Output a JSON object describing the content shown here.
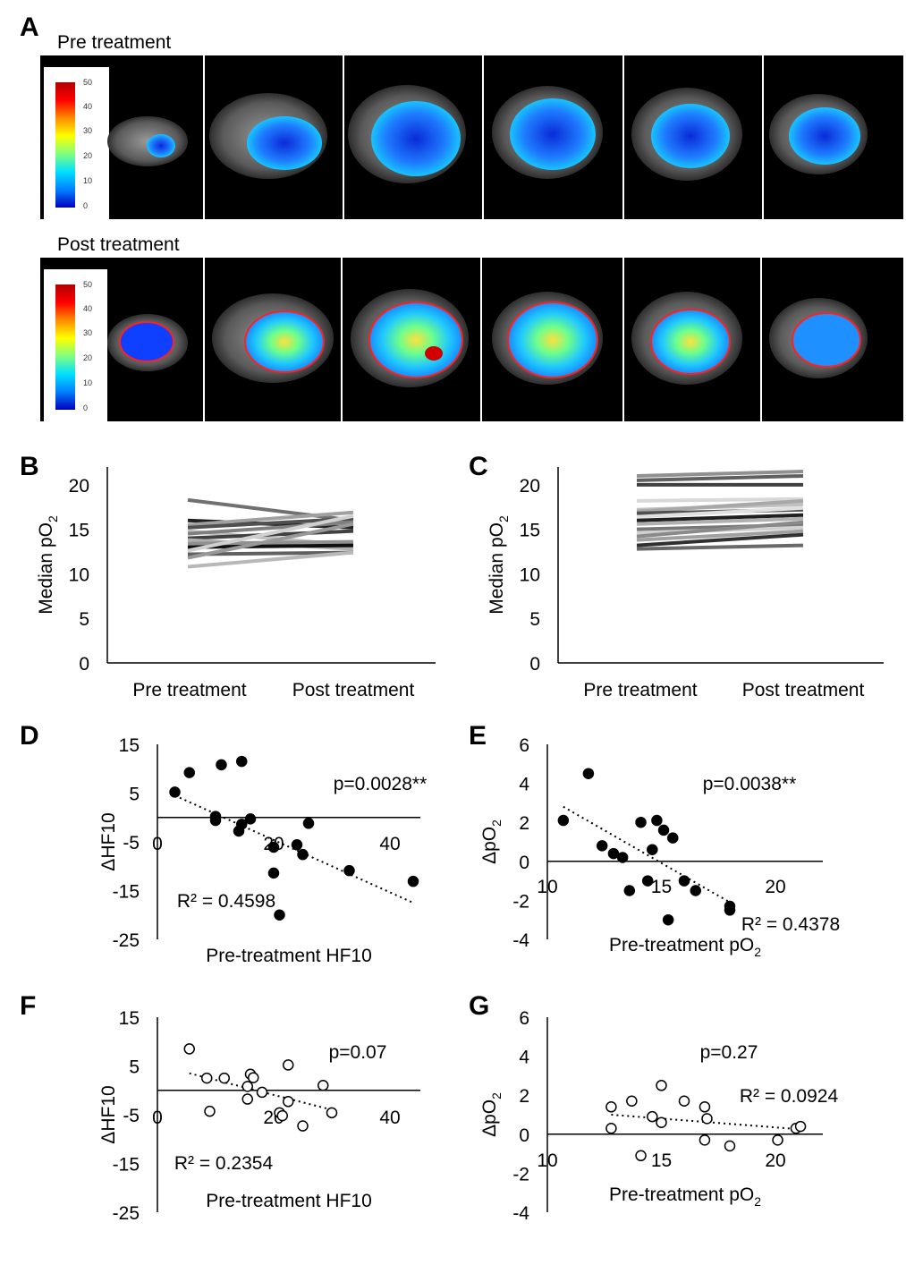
{
  "panels": {
    "A": "A",
    "B": "B",
    "C": "C",
    "D": "D",
    "E": "E",
    "F": "F",
    "G": "G"
  },
  "panel_a": {
    "row_titles": [
      "Pre treatment",
      "Post treatment"
    ],
    "colorbar_ticks": [
      "50",
      "40",
      "30",
      "20",
      "10",
      "0"
    ],
    "colorbar_colors": [
      "#b00000",
      "#ff0000",
      "#ff8c00",
      "#ffff00",
      "#00e0ff",
      "#0000c0"
    ]
  },
  "chart_data": [
    {
      "panel": "B",
      "type": "line",
      "categories": [
        "Pre treatment",
        "Post treatment"
      ],
      "ylabel": "Median pO2",
      "ylim": [
        0,
        22
      ],
      "yticks": [
        "0",
        "5",
        "10",
        "15",
        "20"
      ],
      "series": [
        {
          "values": [
            18.3,
            16.0
          ],
          "color": "#707070"
        },
        {
          "values": [
            16.0,
            15.2
          ],
          "color": "#202020"
        },
        {
          "values": [
            15.5,
            16.9
          ],
          "color": "#a0a0a0"
        },
        {
          "values": [
            15.2,
            16.2
          ],
          "color": "#505050"
        },
        {
          "values": [
            14.8,
            13.2
          ],
          "color": "#c0c0c0"
        },
        {
          "values": [
            14.5,
            15.8
          ],
          "color": "#808080"
        },
        {
          "values": [
            14.0,
            14.8
          ],
          "color": "#404040"
        },
        {
          "values": [
            13.8,
            12.8
          ],
          "color": "#b0b0b0"
        },
        {
          "values": [
            13.4,
            13.6
          ],
          "color": "#909090"
        },
        {
          "values": [
            13.0,
            13.2
          ],
          "color": "#101010"
        },
        {
          "values": [
            12.6,
            16.5
          ],
          "color": "#d0d0d0"
        },
        {
          "values": [
            12.2,
            12.4
          ],
          "color": "#606060"
        },
        {
          "values": [
            11.8,
            15.6
          ],
          "color": "#989898"
        },
        {
          "values": [
            10.8,
            12.4
          ],
          "color": "#b8b8b8"
        }
      ]
    },
    {
      "panel": "C",
      "type": "line",
      "categories": [
        "Pre treatment",
        "Post treatment"
      ],
      "ylabel": "Median pO2",
      "ylim": [
        0,
        22
      ],
      "yticks": [
        "0",
        "5",
        "10",
        "15",
        "20"
      ],
      "series": [
        {
          "values": [
            21.0,
            21.5
          ],
          "color": "#909090"
        },
        {
          "values": [
            20.5,
            21.0
          ],
          "color": "#606060"
        },
        {
          "values": [
            20.0,
            20.0
          ],
          "color": "#404040"
        },
        {
          "values": [
            18.2,
            18.4
          ],
          "color": "#d8d8d8"
        },
        {
          "values": [
            17.2,
            17.8
          ],
          "color": "#c0c0c0"
        },
        {
          "values": [
            17.0,
            18.2
          ],
          "color": "#a8a8a8"
        },
        {
          "values": [
            16.8,
            17.2
          ],
          "color": "#505050"
        },
        {
          "values": [
            16.4,
            17.4
          ],
          "color": "#e0e0e0"
        },
        {
          "values": [
            16.0,
            16.6
          ],
          "color": "#202020"
        },
        {
          "values": [
            15.6,
            16.2
          ],
          "color": "#b0b0b0"
        },
        {
          "values": [
            15.0,
            15.5
          ],
          "color": "#787878"
        },
        {
          "values": [
            14.6,
            15.2
          ],
          "color": "#d0d0d0"
        },
        {
          "values": [
            14.2,
            15.8
          ],
          "color": "#8a8a8a"
        },
        {
          "values": [
            13.8,
            14.8
          ],
          "color": "#a0a0a0"
        },
        {
          "values": [
            13.2,
            14.4
          ],
          "color": "#303030"
        },
        {
          "values": [
            12.8,
            13.2
          ],
          "color": "#686868"
        }
      ]
    },
    {
      "panel": "D",
      "type": "scatter",
      "xlabel": "Pre-treatment HF10",
      "ylabel": "ΔHF10",
      "xlim": [
        0,
        45
      ],
      "ylim": [
        -25,
        15
      ],
      "xticks": [
        "0",
        "20",
        "40"
      ],
      "yticks": [
        "15",
        "5",
        "-5",
        "-15",
        "-25"
      ],
      "marker": "filled",
      "points": [
        [
          3,
          5.2
        ],
        [
          5.5,
          9.2
        ],
        [
          11,
          10.8
        ],
        [
          14.5,
          11.5
        ],
        [
          10,
          0.2
        ],
        [
          10,
          -0.6
        ],
        [
          14,
          -2.8
        ],
        [
          14.5,
          -1.4
        ],
        [
          16,
          -0.3
        ],
        [
          20,
          -6.1
        ],
        [
          20,
          -11.4
        ],
        [
          21,
          -20
        ],
        [
          24,
          -5.6
        ],
        [
          25,
          -7.6
        ],
        [
          26,
          -1.2
        ],
        [
          33,
          -10.9
        ],
        [
          44,
          -13.1
        ]
      ],
      "trendline": [
        [
          3,
          4.5
        ],
        [
          44,
          -17.5
        ]
      ],
      "annotation_p": "p=0.0028**",
      "annotation_r2": "R² = 0.4598"
    },
    {
      "panel": "E",
      "type": "scatter",
      "xlabel": "Pre-treatment pO2",
      "ylabel": "ΔpO2",
      "xlim": [
        10,
        22
      ],
      "ylim": [
        -4,
        6
      ],
      "xticks": [
        "10",
        "15",
        "20"
      ],
      "yticks": [
        "6",
        "4",
        "2",
        "0",
        "-2",
        "-4"
      ],
      "marker": "filled",
      "points": [
        [
          10.7,
          2.1
        ],
        [
          11.8,
          4.5
        ],
        [
          12.4,
          0.8
        ],
        [
          12.9,
          0.4
        ],
        [
          13.3,
          0.2
        ],
        [
          13.6,
          -1.5
        ],
        [
          14.1,
          2.0
        ],
        [
          14.4,
          -1.0
        ],
        [
          14.6,
          0.6
        ],
        [
          14.8,
          2.1
        ],
        [
          15.1,
          1.6
        ],
        [
          15.3,
          -3.0
        ],
        [
          15.5,
          1.2
        ],
        [
          16.0,
          -1.0
        ],
        [
          16.5,
          -1.5
        ],
        [
          18.0,
          -2.3
        ],
        [
          18.0,
          -2.5
        ]
      ],
      "trendline": [
        [
          10.7,
          2.8
        ],
        [
          18.0,
          -2.1
        ]
      ],
      "annotation_p": "p=0.0038**",
      "annotation_r2": "R² = 0.4378"
    },
    {
      "panel": "F",
      "type": "scatter",
      "xlabel": "Pre-treatment HF10",
      "ylabel": "ΔHF10",
      "xlim": [
        0,
        45
      ],
      "ylim": [
        -25,
        15
      ],
      "xticks": [
        "0",
        "20",
        "40"
      ],
      "yticks": [
        "15",
        "5",
        "-5",
        "-15",
        "-25"
      ],
      "marker": "open",
      "points": [
        [
          5.5,
          8.5
        ],
        [
          8.5,
          2.5
        ],
        [
          9,
          -4.3
        ],
        [
          11.5,
          2.5
        ],
        [
          15.5,
          0.8
        ],
        [
          16,
          3.3
        ],
        [
          16.5,
          2.6
        ],
        [
          15.5,
          -1.8
        ],
        [
          18,
          -0.4
        ],
        [
          21,
          -4.6
        ],
        [
          21.5,
          -5.2
        ],
        [
          22.5,
          -2.3
        ],
        [
          22.5,
          5.2
        ],
        [
          25,
          -7.3
        ],
        [
          28.5,
          1
        ],
        [
          30,
          -4.6
        ]
      ],
      "trendline": [
        [
          5.5,
          3.5
        ],
        [
          30,
          -4
        ]
      ],
      "annotation_p": "p=0.07",
      "annotation_r2": "R² = 0.2354"
    },
    {
      "panel": "G",
      "type": "scatter",
      "xlabel": "Pre-treatment pO2",
      "ylabel": "ΔpO2",
      "xlim": [
        10,
        22
      ],
      "ylim": [
        -4,
        6
      ],
      "xticks": [
        "10",
        "15",
        "20"
      ],
      "yticks": [
        "6",
        "4",
        "2",
        "0",
        "-2",
        "-4"
      ],
      "marker": "open",
      "points": [
        [
          12.8,
          1.4
        ],
        [
          12.8,
          0.3
        ],
        [
          13.7,
          1.7
        ],
        [
          14.1,
          -1.1
        ],
        [
          14.6,
          0.9
        ],
        [
          15.0,
          0.6
        ],
        [
          15.0,
          2.5
        ],
        [
          16.0,
          1.7
        ],
        [
          16.9,
          1.4
        ],
        [
          16.9,
          -0.3
        ],
        [
          17.0,
          0.8
        ],
        [
          18.0,
          -0.6
        ],
        [
          20.1,
          -0.3
        ],
        [
          20.9,
          0.3
        ],
        [
          21.1,
          0.4
        ]
      ],
      "trendline": [
        [
          12.8,
          1.0
        ],
        [
          21.1,
          0.25
        ]
      ],
      "annotation_p": "p=0.27",
      "annotation_r2": "R² = 0.0924"
    }
  ]
}
